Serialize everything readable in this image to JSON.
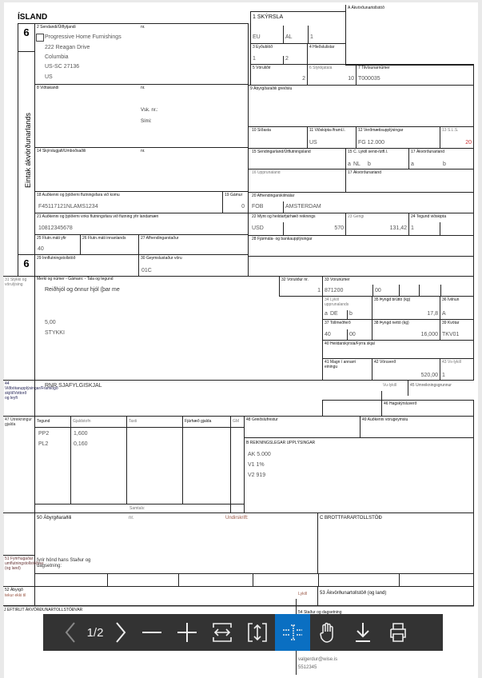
{
  "title": "ÍSLAND",
  "copy_number": "6",
  "side_label": "Eintak ákvörðunarlands",
  "boxes": {
    "b2": {
      "label": "2 Sendandi/Útflytjandi",
      "nr": "nr.",
      "lines": [
        "Progressive Home Furnishings",
        "222 Reagan Drive",
        "Columbia",
        "US-SC 27136",
        "US"
      ]
    },
    "b8": {
      "label": "8 Viðtakandi",
      "nr": "nr.",
      "vsk": "Vsk. nr.:",
      "simi": "Sími:"
    },
    "b14": {
      "label": "14 Skýrslugjafi/Umboðsaðili",
      "nr": "nr."
    },
    "b18": {
      "label": "18 Auðkenni og þjóðerni flutningsfara við komu",
      "value": "F45117121NLAMS1234"
    },
    "b19": {
      "label": "19 Gámur",
      "value": "0"
    },
    "b21": {
      "label": "21 Auðkenni og þjóðerni virks flutningsfara við flutning yfir landamæri",
      "value": "10812345678"
    },
    "b25": {
      "label": "25 Flutn.máti yfir",
      "value": "40"
    },
    "b26": {
      "label": "26 Flutn.máti innanlands"
    },
    "b27": {
      "label": "27 Afhendingarstaður"
    },
    "b29": {
      "label": "29 Innflutningstollstöð"
    },
    "b30": {
      "label": "30 Geymslustaður vöru",
      "value": "01C"
    },
    "bA": {
      "label": "A Ákvörðunartollstöð"
    },
    "b1": {
      "label": "1 SKÝRSLA",
      "v1": "EU",
      "v2": "AL",
      "v3": "1"
    },
    "b3": {
      "label": "3 Eyðublöð",
      "v1": "1",
      "v2": "2"
    },
    "b4": {
      "label": "4 Hleðslulistar"
    },
    "b5": {
      "label": "5 Vöruliðir",
      "value": "2"
    },
    "b6": {
      "label": "6 Stykkjatala",
      "value": "10"
    },
    "b7": {
      "label": "7 Tilvísunarnúmer",
      "value": "T000035"
    },
    "b9": {
      "label": "9 Ábyrgðaraðili greiðslu"
    },
    "b10": {
      "label": "10 Síðasta"
    },
    "b11": {
      "label": "11 Viðskipta-/framl.l.",
      "value": "US"
    },
    "b12": {
      "label": "12 Verðmætisupplýsingar",
      "value": "FG 12.000"
    },
    "b13": {
      "label": "13 S.L.S.",
      "value": "20"
    },
    "b15": {
      "label": "15 Sendingarland/Útflutningsland"
    },
    "b15c": {
      "label": "15 C. Lykill send-/útfl.l.",
      "a": "a",
      "av": "NL",
      "b": "b"
    },
    "b17a": {
      "label": "17 Ákvörðunarland",
      "a": "a",
      "b": "b"
    },
    "b16": {
      "label": "16 Upprunaland"
    },
    "b17": {
      "label": "17 Ákvörðunarland"
    },
    "b20": {
      "label": "20 Afhendingarskilmálar",
      "v1": "FOB",
      "v2": "AMSTERDAM"
    },
    "b22": {
      "label": "22 Mynt og heildarfjárhæð reiknings",
      "v1": "USD",
      "v2": "570"
    },
    "b23": {
      "label": "23 Gengi",
      "value": "131,42"
    },
    "b24": {
      "label": "24 Tegund viðskipta",
      "value": "1"
    },
    "b28": {
      "label": "28 Fjármála- og bankaupplýsingar"
    },
    "b31": {
      "label": "31 Stykki og vörulýsing",
      "sub": "Merki og númer - Gámanr. - Tala og tegund",
      "lines": [
        "Reiðhjól og önnur hjól (þar me",
        "5,00",
        "STYKKI"
      ]
    },
    "b32": {
      "label": "32 Vöruliður nr.",
      "value": "1"
    },
    "b33": {
      "label": "33 Vörunúmer",
      "v1": "871200",
      "v2": "00"
    },
    "b34": {
      "label": "34 Lykill upprunalands",
      "a": "a",
      "av": "DE",
      "b": "b"
    },
    "b35": {
      "label": "35 Þyngd brúttó (kg)",
      "value": "17,8"
    },
    "b36": {
      "label": "36 Ívilnun",
      "value": "A"
    },
    "b37": {
      "label": "37 Tollmeðferð",
      "v1": "40",
      "v2": "00"
    },
    "b38": {
      "label": "38 Þyngd nettó (kg)",
      "value": "16,000"
    },
    "b39": {
      "label": "39 Kvótar",
      "value": "TKV01"
    },
    "b40": {
      "label": "40 Heildarskýrsla/Fyrra skjal"
    },
    "b41": {
      "label": "41 Magn í annarri einingu"
    },
    "b42": {
      "label": "42 Vöruverð",
      "value": "520,00"
    },
    "b43": {
      "label": "43 Vs-lykill",
      "value": "1"
    },
    "b44": {
      "label": "44 Viðbótarupplýsingar/Framlögð skjöl/Vottorð og leyfi",
      "value": "RNR SJAFYLGISKJAL"
    },
    "vulykill": "Vu-lykill",
    "b45": {
      "label": "45 Umreikningsgrunnur"
    },
    "b46": {
      "label": "46 Hagskýrsluverð"
    },
    "b47": {
      "label": "47 Útreikningur gjalda",
      "headers": [
        "Tegund",
        "Gjaldstofn",
        "Taxti",
        "Fjárhæð gjalda",
        "GM"
      ],
      "rows": [
        [
          "PP2",
          "1,600"
        ],
        [
          "PL2",
          "0,160"
        ]
      ],
      "total": "Samtals:"
    },
    "b48": {
      "label": "48 Greiðslufrestur"
    },
    "b49": {
      "label": "49 Auðkenni vörugeymslu"
    },
    "bB": {
      "label": "B REIKNINGSLEGAR UPPLÝSINGAR",
      "lines": [
        "AK 5.000",
        "V1 1%",
        "V2 919"
      ]
    },
    "b50": {
      "label": "50 Ábyrgðaraðili",
      "nr": "nr.",
      "sign": "Undirskrift:",
      "behalf": "fyrir hönd hans Staður og dagsetning:"
    },
    "bC": {
      "label": "C BROTTFARARTOLLSTÖÐ"
    },
    "b51": {
      "label": "51 Fyrirhugaðar umflutningstollstöðvar (og land)"
    },
    "b52": {
      "label": "52 Ábyrgð",
      "sub": "tekur ekki til",
      "key": "Lykill"
    },
    "b53": {
      "label": "53 Ákvörðunartollstöð (og land)"
    },
    "bJ": {
      "label": "J EFTIRLIT ÁKVÖRÐUNARTOLLSTÖÐVAR"
    },
    "b54": {
      "label": "54 Staður og dagsetning",
      "lines": [
        "valgerdur@wise.is",
        "5512345"
      ]
    }
  },
  "toolbar": {
    "page": "1/2",
    "active_tool": "text-select",
    "accent": "#0a6fc2"
  }
}
